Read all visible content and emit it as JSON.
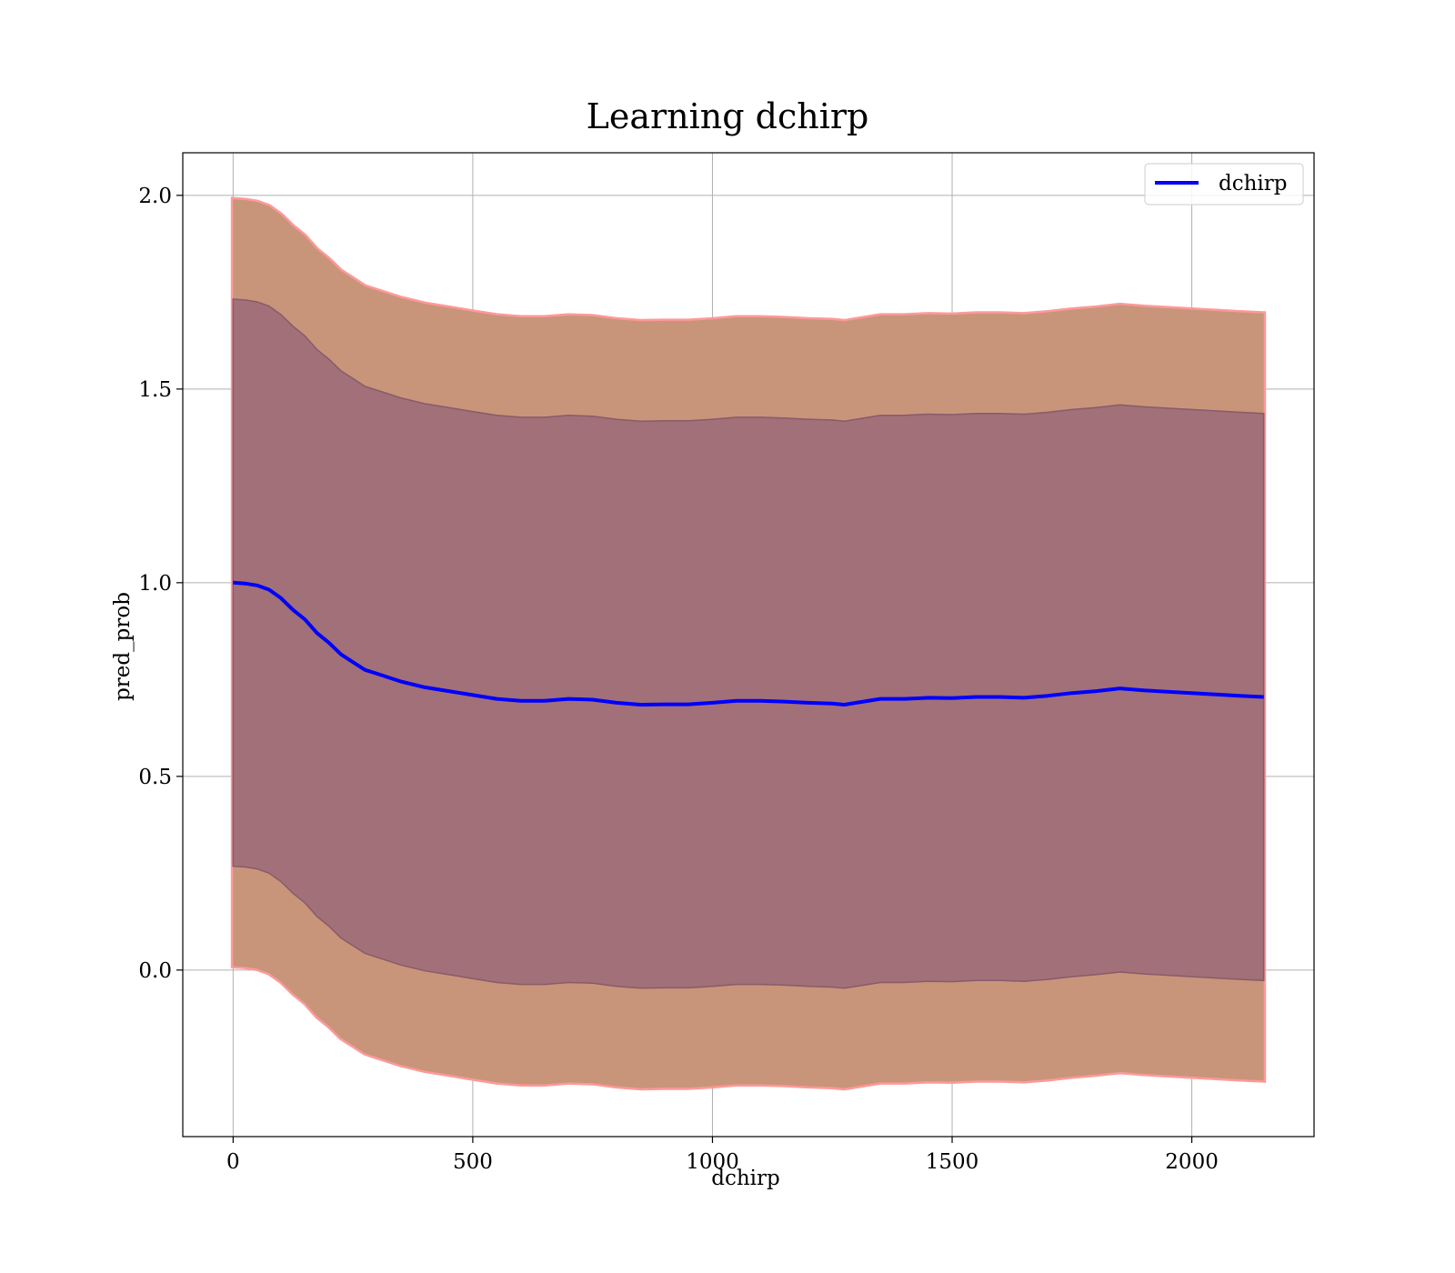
{
  "chart_data": {
    "type": "line",
    "title": "Learning dchirp",
    "xlabel": "dchirp",
    "ylabel": "pred_prob",
    "xlim": [
      -105,
      2255
    ],
    "ylim": [
      -0.43,
      2.11
    ],
    "xticks": [
      0,
      500,
      1000,
      1500,
      2000
    ],
    "xtick_labels": [
      "0",
      "500",
      "1000",
      "1500",
      "2000"
    ],
    "yticks": [
      0.0,
      0.5,
      1.0,
      1.5,
      2.0
    ],
    "ytick_labels": [
      "0.0",
      "0.5",
      "1.0",
      "1.5",
      "2.0"
    ],
    "grid": true,
    "legend": {
      "placement": "top-right",
      "entries": [
        "dchirp"
      ]
    },
    "colors": {
      "line": "#0000ff",
      "inner_band": "#a27078",
      "outer_band": "#c8957a",
      "outer_edge": "#ff9999",
      "inner_edge": "#8a5a6a",
      "grid": "#b0b0b0"
    },
    "series": [
      {
        "name": "dchirp",
        "x": [
          0,
          25,
          50,
          75,
          100,
          125,
          150,
          175,
          200,
          225,
          250,
          275,
          300,
          350,
          400,
          450,
          500,
          550,
          600,
          650,
          700,
          750,
          800,
          850,
          900,
          950,
          1000,
          1050,
          1100,
          1150,
          1200,
          1250,
          1275,
          1300,
          1350,
          1400,
          1450,
          1500,
          1550,
          1600,
          1650,
          1700,
          1750,
          1800,
          1850,
          1900,
          2000,
          2100,
          2150
        ],
        "y": [
          1.0,
          0.998,
          0.993,
          0.982,
          0.96,
          0.93,
          0.905,
          0.87,
          0.845,
          0.815,
          0.795,
          0.775,
          0.765,
          0.745,
          0.73,
          0.72,
          0.71,
          0.7,
          0.695,
          0.695,
          0.7,
          0.698,
          0.69,
          0.685,
          0.686,
          0.686,
          0.69,
          0.695,
          0.695,
          0.693,
          0.69,
          0.688,
          0.685,
          0.69,
          0.7,
          0.7,
          0.703,
          0.702,
          0.705,
          0.705,
          0.703,
          0.708,
          0.715,
          0.72,
          0.727,
          0.722,
          0.715,
          0.708,
          0.705
        ],
        "inner_band_halfwidth": [
          0.732,
          0.732,
          0.732,
          0.732,
          0.732,
          0.732,
          0.732,
          0.732,
          0.732,
          0.732,
          0.732,
          0.732,
          0.732,
          0.732,
          0.732,
          0.732,
          0.732,
          0.732,
          0.732,
          0.732,
          0.732,
          0.732,
          0.732,
          0.732,
          0.732,
          0.732,
          0.732,
          0.732,
          0.732,
          0.732,
          0.732,
          0.732,
          0.732,
          0.732,
          0.732,
          0.732,
          0.732,
          0.732,
          0.732,
          0.732,
          0.732,
          0.732,
          0.732,
          0.732,
          0.732,
          0.732,
          0.732,
          0.732,
          0.732
        ],
        "outer_band_halfwidth": [
          0.99,
          0.99,
          0.99,
          0.99,
          0.99,
          0.99,
          0.99,
          0.99,
          0.99,
          0.99,
          0.99,
          0.99,
          0.99,
          0.99,
          0.99,
          0.99,
          0.99,
          0.99,
          0.99,
          0.99,
          0.99,
          0.99,
          0.99,
          0.99,
          0.99,
          0.99,
          0.99,
          0.99,
          0.99,
          0.99,
          0.99,
          0.99,
          0.99,
          0.99,
          0.99,
          0.99,
          0.99,
          0.99,
          0.99,
          0.99,
          0.99,
          0.99,
          0.99,
          0.99,
          0.99,
          0.99,
          0.99,
          0.99,
          0.99
        ]
      }
    ]
  }
}
